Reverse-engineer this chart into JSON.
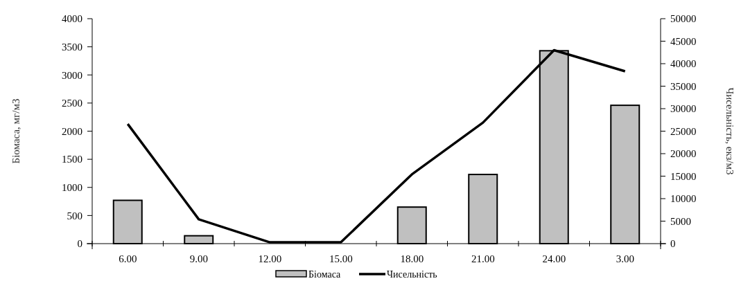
{
  "chart_data": {
    "type": "bar",
    "categories": [
      "6.00",
      "9.00",
      "12.00",
      "15.00",
      "18.00",
      "21.00",
      "24.00",
      "3.00"
    ],
    "ylabel": "Біомаса, мг/м3",
    "y2label": "Чисельність, екз/м3",
    "series": [
      {
        "name": "Біомаса",
        "color": "#c0c0c0",
        "values": [
          770,
          140,
          0,
          0,
          650,
          1230,
          3430,
          2460
        ]
      },
      {
        "name": "Чисельність",
        "type": "line",
        "axis": "y2",
        "color": "#000000",
        "values": [
          26600,
          5400,
          300,
          300,
          15400,
          26900,
          43000,
          38300
        ]
      }
    ],
    "ylim": [
      0,
      4000
    ],
    "yticks": [
      0,
      500,
      1000,
      1500,
      2000,
      2500,
      3000,
      3500,
      4000
    ],
    "y2lim": [
      0,
      50000
    ],
    "y2ticks": [
      0,
      5000,
      10000,
      15000,
      20000,
      25000,
      30000,
      35000,
      40000,
      45000,
      50000
    ],
    "legend": "bottom",
    "grid": false
  }
}
